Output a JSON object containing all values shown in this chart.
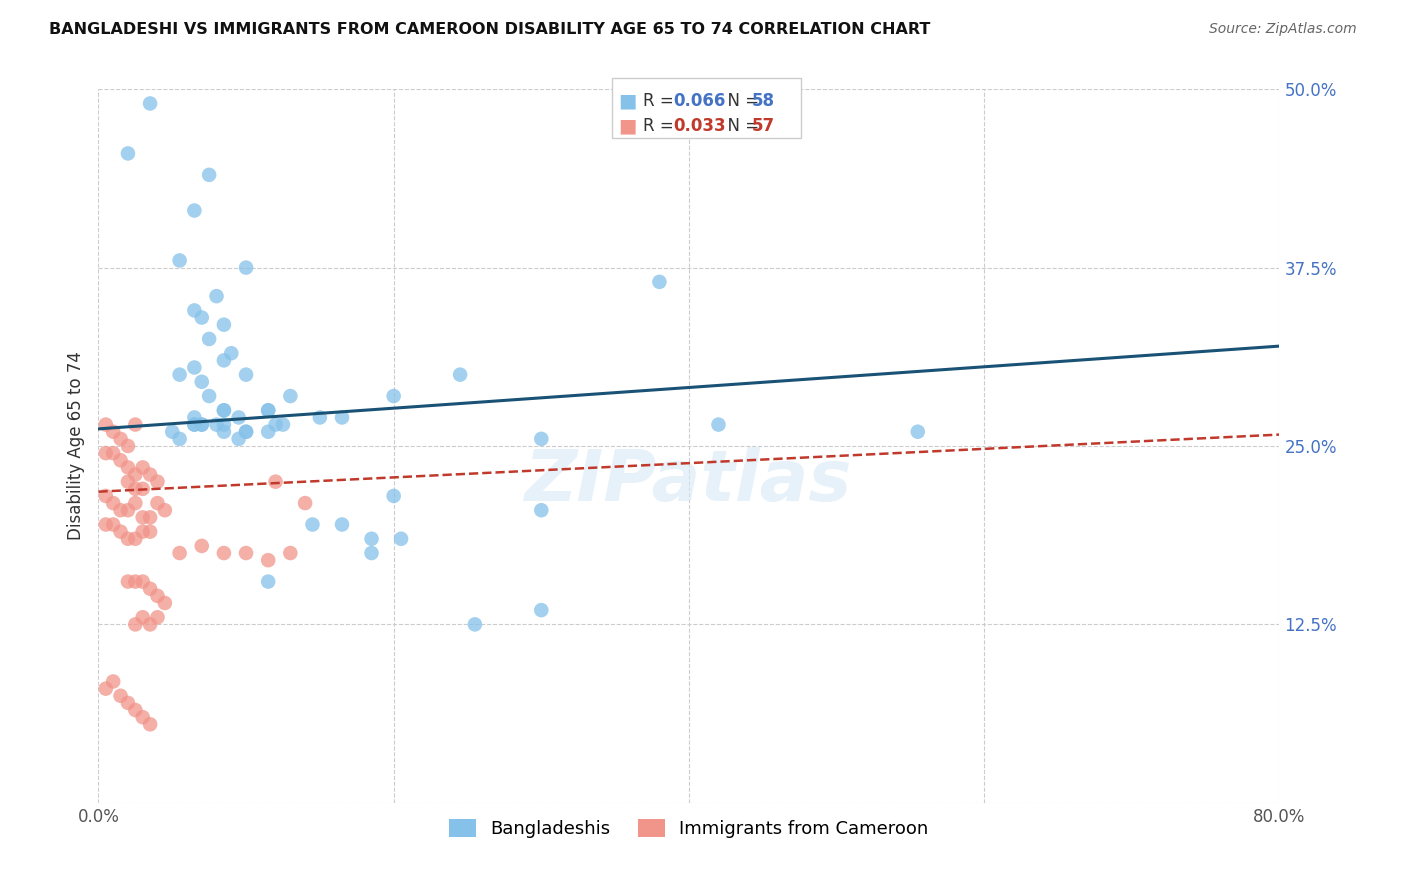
{
  "title": "BANGLADESHI VS IMMIGRANTS FROM CAMEROON DISABILITY AGE 65 TO 74 CORRELATION CHART",
  "source": "Source: ZipAtlas.com",
  "ylabel": "Disability Age 65 to 74",
  "xlim": [
    0.0,
    0.8
  ],
  "ylim": [
    0.0,
    0.5
  ],
  "xticks": [
    0.0,
    0.2,
    0.4,
    0.6,
    0.8
  ],
  "xticklabels": [
    "0.0%",
    "",
    "",
    "",
    "80.0%"
  ],
  "yticks": [
    0.0,
    0.125,
    0.25,
    0.375,
    0.5
  ],
  "yticklabels": [
    "",
    "12.5%",
    "25.0%",
    "37.5%",
    "50.0%"
  ],
  "background_color": "#ffffff",
  "grid_color": "#cccccc",
  "blue_color": "#85C1E9",
  "pink_color": "#F1948A",
  "line_blue": "#1A5276",
  "line_pink": "#C0392B",
  "blue_line_x": [
    0.0,
    0.8
  ],
  "blue_line_y": [
    0.262,
    0.32
  ],
  "pink_line_x": [
    0.0,
    0.8
  ],
  "pink_line_y": [
    0.218,
    0.258
  ],
  "scatter_blue_x": [
    0.035,
    0.02,
    0.075,
    0.065,
    0.055,
    0.1,
    0.08,
    0.065,
    0.07,
    0.085,
    0.075,
    0.09,
    0.085,
    0.065,
    0.055,
    0.07,
    0.075,
    0.085,
    0.1,
    0.115,
    0.125,
    0.13,
    0.15,
    0.165,
    0.115,
    0.095,
    0.08,
    0.07,
    0.065,
    0.085,
    0.1,
    0.12,
    0.095,
    0.115,
    0.2,
    0.245,
    0.3,
    0.2,
    0.165,
    0.3,
    0.38,
    0.555,
    0.42,
    0.185,
    0.115,
    0.205,
    0.3,
    0.255,
    0.185,
    0.145,
    0.1,
    0.085,
    0.07,
    0.065,
    0.085,
    0.065,
    0.055,
    0.05
  ],
  "scatter_blue_y": [
    0.49,
    0.455,
    0.44,
    0.415,
    0.38,
    0.375,
    0.355,
    0.345,
    0.34,
    0.335,
    0.325,
    0.315,
    0.31,
    0.305,
    0.3,
    0.295,
    0.285,
    0.275,
    0.3,
    0.275,
    0.265,
    0.285,
    0.27,
    0.27,
    0.275,
    0.27,
    0.265,
    0.265,
    0.265,
    0.26,
    0.26,
    0.265,
    0.255,
    0.26,
    0.285,
    0.3,
    0.255,
    0.215,
    0.195,
    0.205,
    0.365,
    0.26,
    0.265,
    0.175,
    0.155,
    0.185,
    0.135,
    0.125,
    0.185,
    0.195,
    0.26,
    0.265,
    0.265,
    0.27,
    0.275,
    0.265,
    0.255,
    0.26
  ],
  "scatter_pink_x": [
    0.005,
    0.01,
    0.015,
    0.02,
    0.025,
    0.005,
    0.01,
    0.015,
    0.02,
    0.025,
    0.03,
    0.035,
    0.04,
    0.02,
    0.025,
    0.03,
    0.005,
    0.01,
    0.015,
    0.02,
    0.025,
    0.03,
    0.035,
    0.04,
    0.045,
    0.005,
    0.01,
    0.015,
    0.02,
    0.025,
    0.03,
    0.035,
    0.12,
    0.14,
    0.055,
    0.07,
    0.085,
    0.1,
    0.115,
    0.13,
    0.02,
    0.025,
    0.03,
    0.035,
    0.04,
    0.045,
    0.025,
    0.03,
    0.035,
    0.04,
    0.005,
    0.01,
    0.015,
    0.02,
    0.025,
    0.03,
    0.035
  ],
  "scatter_pink_y": [
    0.265,
    0.26,
    0.255,
    0.25,
    0.265,
    0.245,
    0.245,
    0.24,
    0.235,
    0.23,
    0.235,
    0.23,
    0.225,
    0.225,
    0.22,
    0.22,
    0.215,
    0.21,
    0.205,
    0.205,
    0.21,
    0.2,
    0.2,
    0.21,
    0.205,
    0.195,
    0.195,
    0.19,
    0.185,
    0.185,
    0.19,
    0.19,
    0.225,
    0.21,
    0.175,
    0.18,
    0.175,
    0.175,
    0.17,
    0.175,
    0.155,
    0.155,
    0.155,
    0.15,
    0.145,
    0.14,
    0.125,
    0.13,
    0.125,
    0.13,
    0.08,
    0.085,
    0.075,
    0.07,
    0.065,
    0.06,
    0.055
  ]
}
